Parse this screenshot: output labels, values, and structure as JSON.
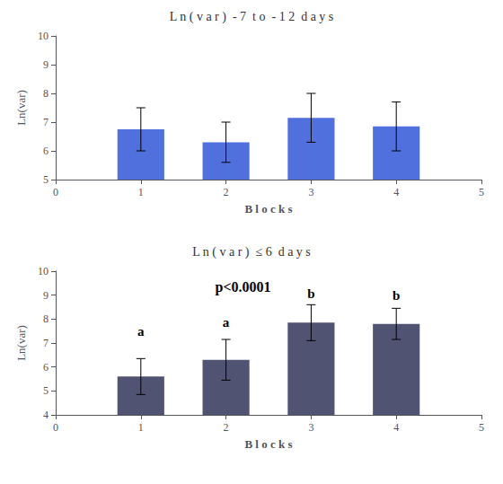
{
  "chart_data": [
    {
      "type": "bar",
      "title": "L n ( v a r )  - 7  t o  - 1 2  d a y s",
      "x": [
        1,
        2,
        3,
        4
      ],
      "values": [
        6.75,
        6.3,
        7.15,
        6.85
      ],
      "errors": [
        0.75,
        0.7,
        0.85,
        0.85
      ],
      "xlim": [
        0,
        5
      ],
      "xticks": [
        0,
        1,
        2,
        3,
        4,
        5
      ],
      "ylim": [
        5,
        10
      ],
      "yticks": [
        5,
        6,
        7,
        8,
        9,
        10
      ],
      "xlabel": "B l o c k s",
      "ylabel": "Ln(var)",
      "grid": false
    },
    {
      "type": "bar",
      "title": "L n ( v a r )  ≤ 6  d a y s",
      "x": [
        1,
        2,
        3,
        4
      ],
      "values": [
        5.6,
        6.3,
        7.85,
        7.8
      ],
      "errors": [
        0.75,
        0.85,
        0.75,
        0.65
      ],
      "xlim": [
        0,
        5
      ],
      "xticks": [
        0,
        1,
        2,
        3,
        4,
        5
      ],
      "ylim": [
        4,
        10
      ],
      "yticks": [
        4,
        5,
        6,
        7,
        8,
        9,
        10
      ],
      "xlabel": "B l o c k s",
      "ylabel": "Ln(var)",
      "grid": false,
      "annotations": [
        {
          "text": "p<0.0001",
          "x": 2.2,
          "y": 9.35
        },
        {
          "text": "a",
          "x": 1.0,
          "y": 7.5
        },
        {
          "text": "a",
          "x": 2.0,
          "y": 7.85
        },
        {
          "text": "b",
          "x": 3.0,
          "y": 9.05
        },
        {
          "text": "b",
          "x": 4.0,
          "y": 9.0
        }
      ]
    }
  ]
}
